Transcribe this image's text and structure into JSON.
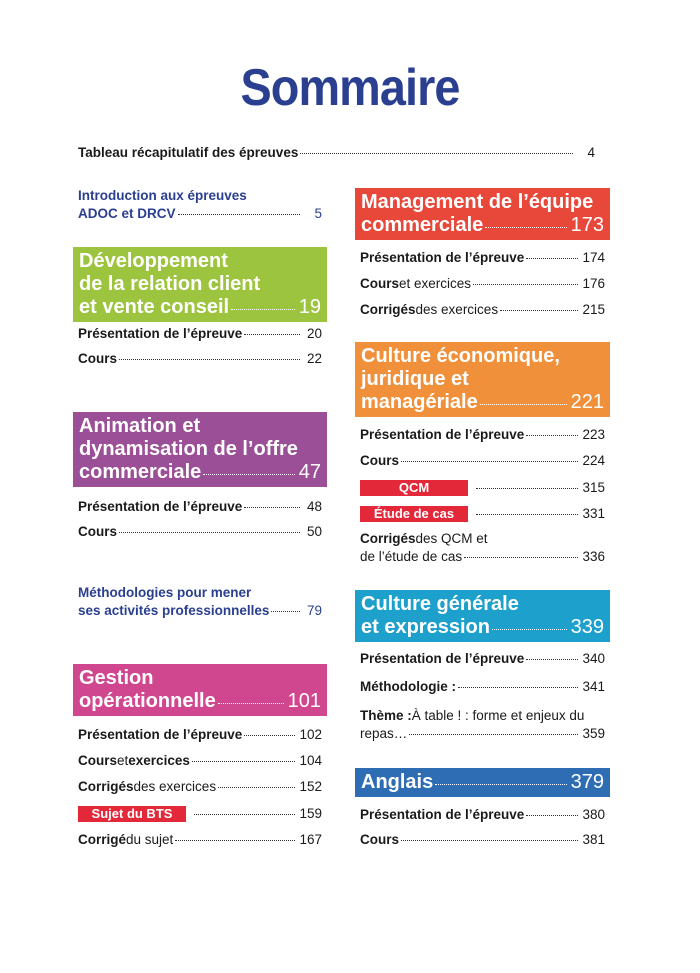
{
  "title": "Sommaire",
  "top": [
    {
      "type": "entry",
      "bold": "Tableau récapitulatif des épreuves",
      "text": "",
      "page": "4"
    }
  ],
  "left": [
    {
      "type": "blue",
      "line1": "Introduction aux épreuves",
      "line2": "ADOC et DRCV",
      "page": "5"
    },
    {
      "type": "box",
      "color": "#9dc43f",
      "lines": [
        "Développement",
        "de la relation client",
        "et vente conseil"
      ],
      "page": "19"
    },
    {
      "type": "entry",
      "bold": "Présentation de l’épreuve",
      "text": "",
      "page": "20"
    },
    {
      "type": "entry",
      "bold": "Cours",
      "text": "",
      "page": "22"
    },
    {
      "type": "box",
      "color": "#9b4f96",
      "lines": [
        "Animation et",
        "dynamisation de l’offre",
        "commerciale"
      ],
      "page": "47"
    },
    {
      "type": "entry",
      "bold": "Présentation de l’épreuve",
      "text": "",
      "page": "48"
    },
    {
      "type": "entry",
      "bold": "Cours",
      "text": "",
      "page": "50"
    },
    {
      "type": "blue",
      "line1": "Méthodologies pour mener",
      "line2": "ses activités professionnelles",
      "page": "79"
    },
    {
      "type": "box",
      "color": "#d0468f",
      "lines": [
        "Gestion",
        "opérationnelle"
      ],
      "page": "101"
    },
    {
      "type": "entry",
      "bold": "Présentation de l’épreuve",
      "text": "",
      "page": "102"
    },
    {
      "type": "entry",
      "bold": "Cours",
      "text": " et ",
      "bold2": "exercices",
      "page": "104"
    },
    {
      "type": "entry",
      "bold": "Corrigés",
      "text": " des exercices",
      "page": "152"
    },
    {
      "type": "badge",
      "label": "Sujet du BTS",
      "page": "159"
    },
    {
      "type": "entry",
      "bold": "Corrigé",
      "text": " du sujet",
      "page": "167"
    }
  ],
  "right": [
    {
      "type": "box",
      "color": "#e8483a",
      "lines": [
        "Management de l’équipe",
        "commerciale"
      ],
      "page": "173"
    },
    {
      "type": "entry",
      "bold": "Présentation de l’épreuve",
      "text": "",
      "page": "174"
    },
    {
      "type": "entry",
      "bold": "Cours",
      "text": " et exercices",
      "page": "176"
    },
    {
      "type": "entry",
      "bold": "Corrigés",
      "text": " des exercices",
      "page": "215"
    },
    {
      "type": "box",
      "color": "#f0903a",
      "lines": [
        "Culture économique,",
        "juridique et",
        "managériale"
      ],
      "page": "221"
    },
    {
      "type": "entry",
      "bold": "Présentation de l’épreuve",
      "text": "",
      "page": "223"
    },
    {
      "type": "entry",
      "bold": "Cours",
      "text": "",
      "page": "224"
    },
    {
      "type": "badge",
      "label": "QCM",
      "page": "315"
    },
    {
      "type": "badge",
      "label": "Étude de cas",
      "page": "331"
    },
    {
      "type": "entry",
      "bold": "Corrigés",
      "text": " des QCM et",
      "text2": "de l’étude de cas",
      "page": "336"
    },
    {
      "type": "box",
      "color": "#1ea0cc",
      "lines": [
        "Culture générale",
        "et expression"
      ],
      "page": "339"
    },
    {
      "type": "entry",
      "bold": "Présentation de l’épreuve",
      "text": "",
      "page": "340"
    },
    {
      "type": "entry",
      "bold": "Méthodologie :",
      "text": "",
      "page": "341"
    },
    {
      "type": "entry",
      "bold": "Thème :",
      "text": " À table ! : forme et enjeux du",
      "text2": "repas…",
      "page": "359"
    },
    {
      "type": "box",
      "color": "#2e6db4",
      "lines": [
        "Anglais"
      ],
      "page": "379"
    },
    {
      "type": "entry",
      "bold": "Présentation de l’épreuve",
      "text": "",
      "page": "380"
    },
    {
      "type": "entry",
      "bold": "Cours",
      "text": "",
      "page": "381"
    }
  ]
}
